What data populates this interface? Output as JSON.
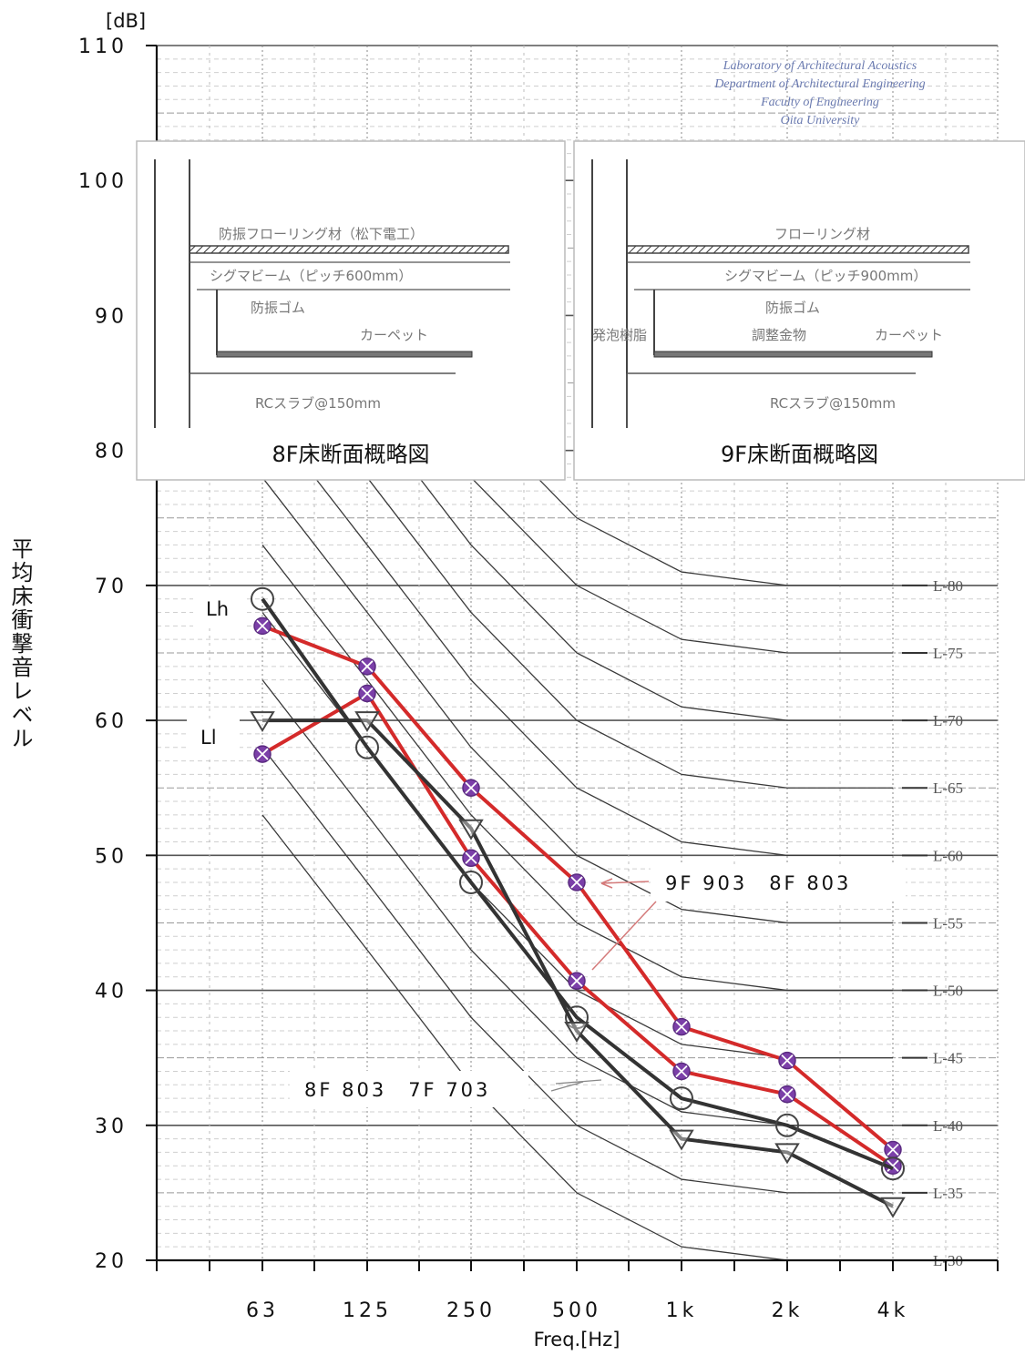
{
  "chart_data": {
    "type": "line",
    "title": "",
    "xlabel": "Freq.[Hz]",
    "ylabel": "平均床衝撃音レベル",
    "y_unit": "[dB]",
    "ylim": [
      20,
      110
    ],
    "yticks": [
      20,
      30,
      40,
      50,
      60,
      70,
      80,
      90,
      100,
      110
    ],
    "categories": [
      "63",
      "125",
      "250",
      "500",
      "1k",
      "2k",
      "4k"
    ],
    "grid": true,
    "series": [
      {
        "name": "Lh",
        "room_pair": "9F 903 8F 803",
        "color": "#d42a2a",
        "marker": "cross-circle",
        "values": [
          67,
          64,
          55,
          48,
          37.3,
          34.8,
          28.2
        ]
      },
      {
        "name": "Ll",
        "room_pair": "9F 903 8F 803",
        "color": "#d42a2a",
        "marker": "cross-circle",
        "values": [
          57.5,
          62,
          49.8,
          40.7,
          34,
          32.3,
          27
        ]
      },
      {
        "name": "Lh",
        "room_pair": "8F 803 7F 703",
        "color": "#333333",
        "marker": "circle",
        "values": [
          69,
          58,
          48,
          38,
          32,
          30,
          26.8
        ]
      },
      {
        "name": "Ll",
        "room_pair": "8F 803 7F 703",
        "color": "#333333",
        "marker": "triangle-down",
        "values": [
          60,
          60,
          52,
          37,
          29,
          28,
          24
        ]
      }
    ],
    "rating_curves": {
      "labels": [
        "L-80",
        "L-75",
        "L-70",
        "L-65",
        "L-60",
        "L-55",
        "L-50",
        "L-45",
        "L-40",
        "L-35",
        "L-30"
      ],
      "values_at_4k": [
        80,
        75,
        70,
        65,
        60,
        55,
        50,
        45,
        40,
        35,
        30
      ]
    },
    "annotations": {
      "curve_labels": [
        "Lh",
        "Ll"
      ],
      "red_pair": "9F 903　8F 803",
      "black_pair": "8F 803　7F 703",
      "lab_credit": [
        "Laboratory of Architectural Acoustics",
        "Department of Architectural Engineering",
        "Faculty of Engineering",
        "Oita University"
      ]
    },
    "insets": [
      {
        "title": "8F床断面概略図",
        "labels": [
          "防振フローリング材（松下電工）",
          "シグマビーム（ピッチ600mm）",
          "防振ゴム",
          "カーペット",
          "RCスラブ@150mm"
        ]
      },
      {
        "title": "9F床断面概略図",
        "labels": [
          "フローリング材",
          "シグマビーム（ピッチ900mm）",
          "防振ゴム",
          "発泡樹脂",
          "調整金物",
          "カーペット",
          "RCスラブ@150mm"
        ]
      }
    ]
  }
}
